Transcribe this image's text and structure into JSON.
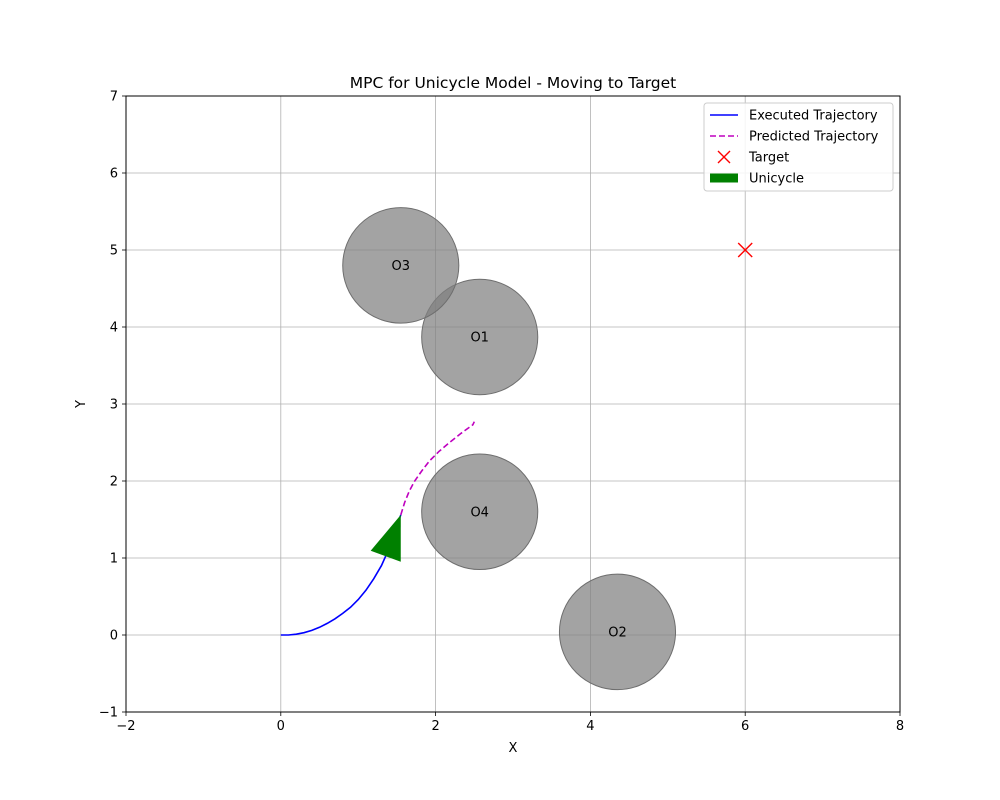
{
  "chart_data": {
    "type": "scatter",
    "title": "MPC for Unicycle Model - Moving to Target",
    "xlabel": "X",
    "ylabel": "Y",
    "xlim": [
      -2.0,
      8.0
    ],
    "ylim": [
      -1.0,
      7.0
    ],
    "xticks": [
      -2,
      0,
      2,
      4,
      6,
      8
    ],
    "yticks": [
      -1,
      0,
      1,
      2,
      3,
      4,
      5,
      6,
      7
    ],
    "grid": true,
    "legend_position": "top-right",
    "legend": [
      {
        "label": "Executed Trajectory",
        "style": "solid-line",
        "color": "#0000ff"
      },
      {
        "label": "Predicted Trajectory",
        "style": "dashed-line",
        "color": "#bf00bf"
      },
      {
        "label": "Target",
        "style": "x-marker",
        "color": "#ff0000"
      },
      {
        "label": "Unicycle",
        "style": "filled-patch",
        "color": "#008000"
      }
    ],
    "executed_trajectory": {
      "color": "#0000ff",
      "points": [
        [
          0.0,
          0.0
        ],
        [
          0.1,
          0.0
        ],
        [
          0.2,
          0.01
        ],
        [
          0.3,
          0.03
        ],
        [
          0.4,
          0.06
        ],
        [
          0.5,
          0.1
        ],
        [
          0.6,
          0.15
        ],
        [
          0.7,
          0.21
        ],
        [
          0.8,
          0.28
        ],
        [
          0.9,
          0.36
        ],
        [
          1.0,
          0.46
        ],
        [
          1.1,
          0.58
        ],
        [
          1.2,
          0.73
        ],
        [
          1.3,
          0.9
        ],
        [
          1.38,
          1.08
        ],
        [
          1.44,
          1.25
        ],
        [
          1.5,
          1.42
        ],
        [
          1.55,
          1.56
        ]
      ]
    },
    "predicted_trajectory": {
      "color": "#bf00bf",
      "points": [
        [
          1.55,
          1.56
        ],
        [
          1.6,
          1.72
        ],
        [
          1.66,
          1.87
        ],
        [
          1.73,
          2.0
        ],
        [
          1.82,
          2.13
        ],
        [
          1.92,
          2.26
        ],
        [
          2.04,
          2.38
        ],
        [
          2.18,
          2.5
        ],
        [
          2.33,
          2.62
        ],
        [
          2.48,
          2.73
        ],
        [
          2.5,
          2.77
        ]
      ]
    },
    "target": {
      "x": 6.0,
      "y": 5.0,
      "color": "#ff0000"
    },
    "unicycle": {
      "x": 1.55,
      "y": 1.56,
      "heading_deg": 70,
      "color": "#008000"
    },
    "obstacles": [
      {
        "label": "O1",
        "x": 2.57,
        "y": 3.87,
        "r": 0.75
      },
      {
        "label": "O2",
        "x": 4.35,
        "y": 0.04,
        "r": 0.75
      },
      {
        "label": "O3",
        "x": 1.55,
        "y": 4.8,
        "r": 0.75
      },
      {
        "label": "O4",
        "x": 2.57,
        "y": 1.6,
        "r": 0.75
      }
    ],
    "obstacle_color": "#808080"
  }
}
